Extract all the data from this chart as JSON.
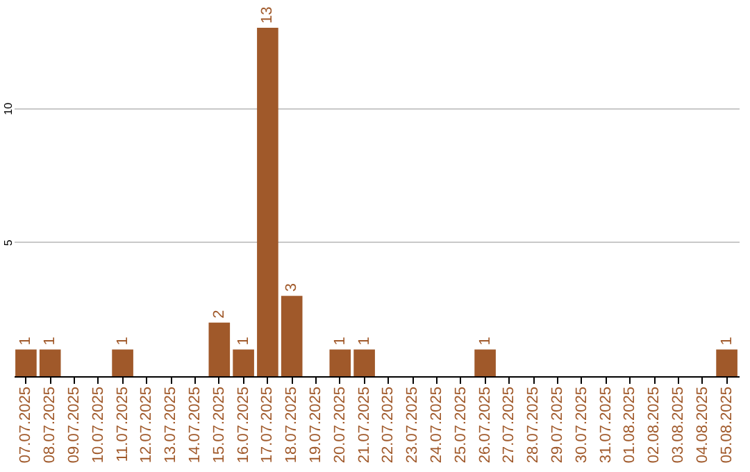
{
  "chart_data": {
    "type": "bar",
    "categories": [
      "07.07.2025",
      "08.07.2025",
      "09.07.2025",
      "10.07.2025",
      "11.07.2025",
      "12.07.2025",
      "13.07.2025",
      "14.07.2025",
      "15.07.2025",
      "16.07.2025",
      "17.07.2025",
      "18.07.2025",
      "19.07.2025",
      "20.07.2025",
      "21.07.2025",
      "22.07.2025",
      "23.07.2025",
      "24.07.2025",
      "25.07.2025",
      "26.07.2025",
      "27.07.2025",
      "28.07.2025",
      "29.07.2025",
      "30.07.2025",
      "31.07.2025",
      "01.08.2025",
      "02.08.2025",
      "03.08.2025",
      "04.08.2025",
      "05.08.2025"
    ],
    "values": [
      1,
      1,
      0,
      0,
      1,
      0,
      0,
      0,
      2,
      1,
      13,
      3,
      0,
      1,
      1,
      0,
      0,
      0,
      0,
      1,
      0,
      0,
      0,
      0,
      0,
      0,
      0,
      0,
      0,
      1
    ],
    "value_labels": [
      "1",
      "1",
      null,
      null,
      "1",
      null,
      null,
      null,
      "2",
      "1",
      "13",
      "3",
      null,
      "1",
      "1",
      null,
      null,
      null,
      null,
      "1",
      null,
      null,
      null,
      null,
      null,
      null,
      null,
      null,
      null,
      "1"
    ],
    "color": "#a0592a",
    "ylim": [
      0,
      13
    ],
    "yticks": [
      5,
      10
    ],
    "grid": "y"
  }
}
